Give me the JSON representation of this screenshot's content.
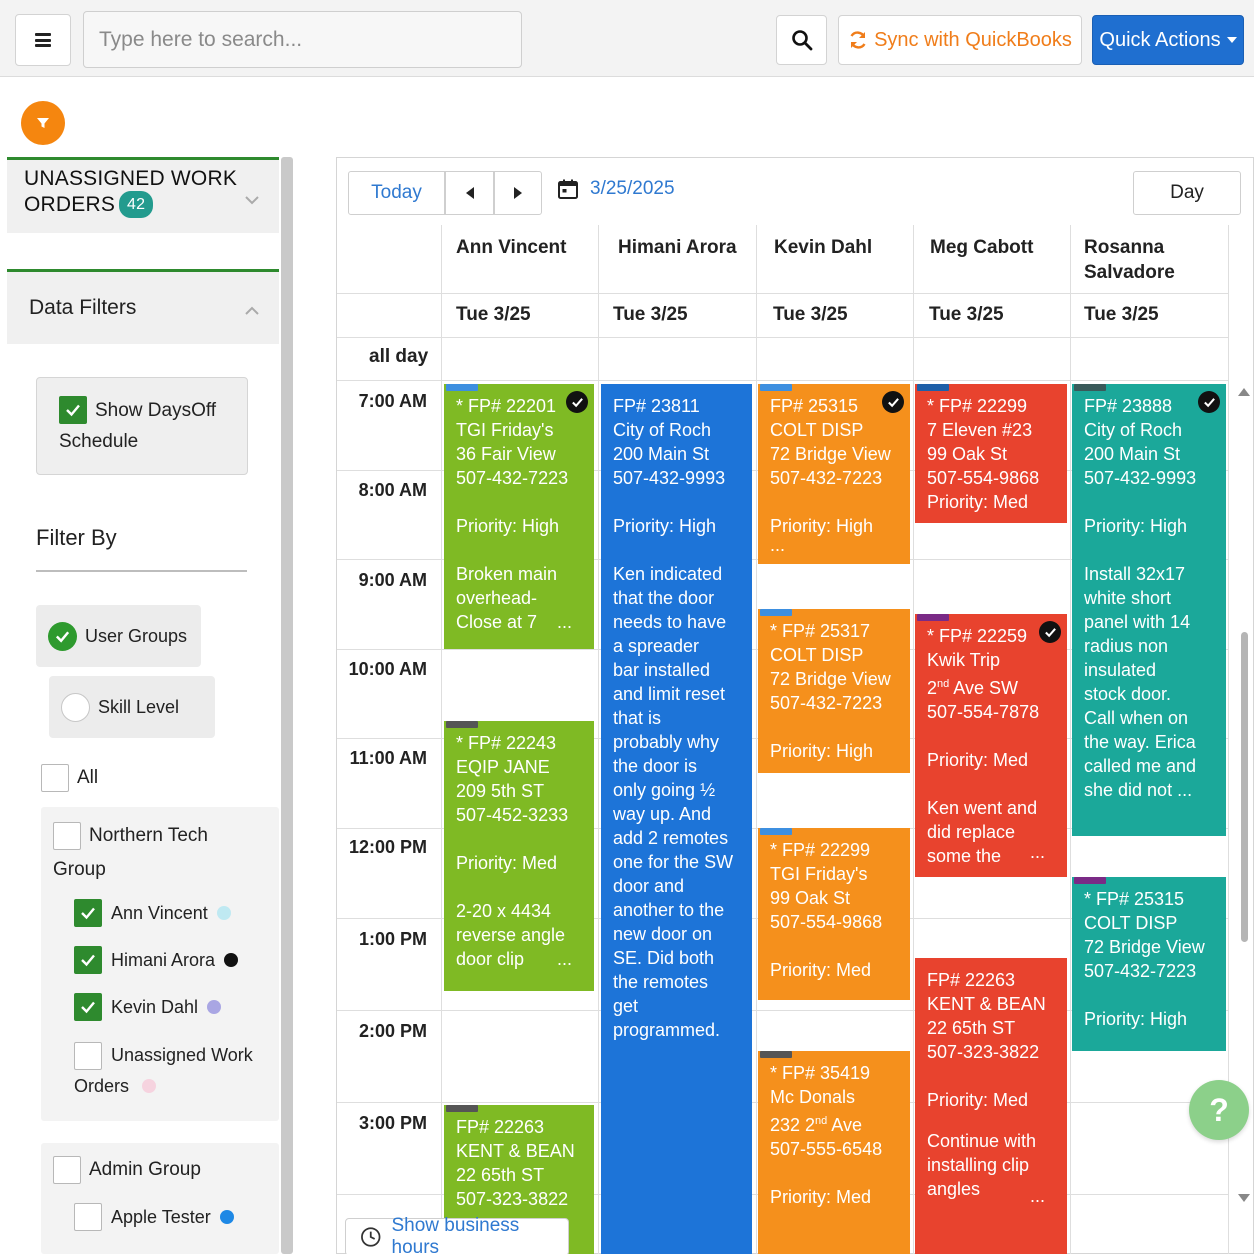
{
  "topbar": {
    "search_placeholder": "Type here to search...",
    "sync_label": "Sync with QuickBooks",
    "quick_actions_label": "Quick Actions"
  },
  "sidebar": {
    "unassigned_line1": "UNASSIGNED WORK",
    "unassigned_line2": "ORDERS",
    "unassigned_count": "42",
    "data_filters": "Data Filters",
    "show_daysoff_line1": "Show DaysOff",
    "show_daysoff_line2": "Schedule",
    "filter_by": "Filter By",
    "user_groups": "User Groups",
    "skill_level": "Skill Level",
    "all": "All",
    "group1_line1": "Northern Tech",
    "group1_line2": "Group",
    "members": [
      {
        "name": "Ann Vincent",
        "color": "#bfe9f2"
      },
      {
        "name": "Himani Arora",
        "color": "#111111"
      },
      {
        "name": "Kevin Dahl",
        "color": "#a9a6e3"
      },
      {
        "name_line1": "Unassigned Work",
        "name_line2": "Orders",
        "color": "#f6d3df"
      }
    ],
    "group2": "Admin Group",
    "group2_member": {
      "name": "Apple Tester",
      "color": "#1e88e5"
    }
  },
  "calendar": {
    "today": "Today",
    "date": "3/25/2025",
    "view": "Day",
    "all_day": "all day",
    "show_business_hours": "Show business hours",
    "resources": [
      {
        "name": "Ann Vincent",
        "date": "Tue 3/25"
      },
      {
        "name": "Himani Arora",
        "date": "Tue 3/25"
      },
      {
        "name": "Kevin Dahl",
        "date": "Tue 3/25"
      },
      {
        "name": "Meg Cabott",
        "date": "Tue 3/25"
      },
      {
        "name_line1": "Rosanna",
        "name_line2": "Salvadore",
        "date": "Tue 3/25"
      }
    ],
    "times": [
      "7:00 AM",
      "8:00 AM",
      "9:00 AM",
      "10:00 AM",
      "11:00 AM",
      "12:00 PM",
      "1:00 PM",
      "2:00 PM",
      "3:00 PM"
    ],
    "events": {
      "e1": {
        "l1": "* FP# 22201",
        "l2": "TGI Friday's",
        "l3": "36 Fair View",
        "l4": "507-432-7223",
        "l5": "Priority: High",
        "l6": "Broken main",
        "l7": "overhead-",
        "l8": "Close at 7",
        "more": "..."
      },
      "e2": {
        "l1": "* FP# 22243",
        "l2": "EQIP JANE",
        "l3": "209 5th ST",
        "l4": "507-452-3233",
        "l5": "Priority: Med",
        "l6": "2-20 x 4434",
        "l7": "reverse angle",
        "l8": "door clip",
        "more": "..."
      },
      "e3": {
        "l1": "FP# 22263",
        "l2": "KENT & BEAN",
        "l3": "22 65th ST",
        "l4": "507-323-3822"
      },
      "e4": {
        "l1": "FP# 23811",
        "l2": "City of Roch",
        "l3": "200 Main St",
        "l4": "507-432-9993",
        "l5": "Priority: High",
        "l6": "Ken indicated",
        "l7": "that the door",
        "l8": "needs to have",
        "l9": "a spreader",
        "l10": "bar installed",
        "l11": "and limit reset",
        "l12": "that is",
        "l13": "probably why",
        "l14": "the door is",
        "l15": "only going ½",
        "l16": "way up.  And",
        "l17": "add 2 remotes",
        "l18": "one for the SW",
        "l19": "door and",
        "l20": "another to the",
        "l21": "new door on",
        "l22": "SE.  Did both",
        "l23": "the remotes",
        "l24": "get",
        "l25": "programmed."
      },
      "e5": {
        "l1": "FP# 25315",
        "l2": "COLT DISP",
        "l3": "72 Bridge View",
        "l4": "507-432-7223",
        "l5": "Priority: High",
        "more": "..."
      },
      "e6": {
        "l1": "* FP# 25317",
        "l2": "COLT DISP",
        "l3": "72 Bridge View",
        "l4": "507-432-7223",
        "l5": "Priority: High"
      },
      "e7": {
        "l1": "* FP# 22299",
        "l2": "TGI Friday's",
        "l3": "99 Oak St",
        "l4": "507-554-9868",
        "l5": "Priority: Med"
      },
      "e8": {
        "l1": "* FP# 35419",
        "l2": "Mc Donals",
        "l3a": "232 2",
        "l3sup": "nd",
        "l3b": " Ave",
        "l4": "507-555-6548",
        "l5": "Priority: Med"
      },
      "e9": {
        "l1": "* FP# 22299",
        "l2": "7 Eleven #23",
        "l3": "99 Oak St",
        "l4": "507-554-9868",
        "l5": "Priority: Med"
      },
      "e10": {
        "l1": "* FP# 22259",
        "l2": "Kwik Trip",
        "l3a": "2",
        "l3sup": "nd",
        "l3b": " Ave SW",
        "l4": "507-554-7878",
        "l5": "Priority: Med",
        "l6": "Ken went and",
        "l7": "did replace",
        "l8": "some the",
        "more": "..."
      },
      "e11": {
        "l1": "FP# 22263",
        "l2": "KENT & BEAN",
        "l3": "22 65th ST",
        "l4": "507-323-3822",
        "l5": "Priority: Med",
        "l6": "Continue with",
        "l7": "installing clip",
        "l8": "angles",
        "more": "..."
      },
      "e12": {
        "l1": "FP# 23888",
        "l2": "City of Roch",
        "l3": "200 Main St",
        "l4": "507-432-9993",
        "l5": "Priority: High",
        "l6": "Install 32x17",
        "l7": "white short",
        "l8": "panel with 14",
        "l9": "radius non",
        "l10": "insulated",
        "l11": "stock door.",
        "l12": "Call when on",
        "l13": "the way. Erica",
        "l14": "called me and",
        "l15": "she did not ..."
      },
      "e13": {
        "l1": "* FP# 25315",
        "l2": "COLT DISP",
        "l3": "72 Bridge View",
        "l4": "507-432-7223",
        "l5": "Priority: High"
      }
    },
    "colors": {
      "green": "#7fba24",
      "blue": "#1d74d8",
      "orange": "#f5901c",
      "red": "#e8432e",
      "teal": "#1ba89a"
    }
  },
  "help_label": "?"
}
